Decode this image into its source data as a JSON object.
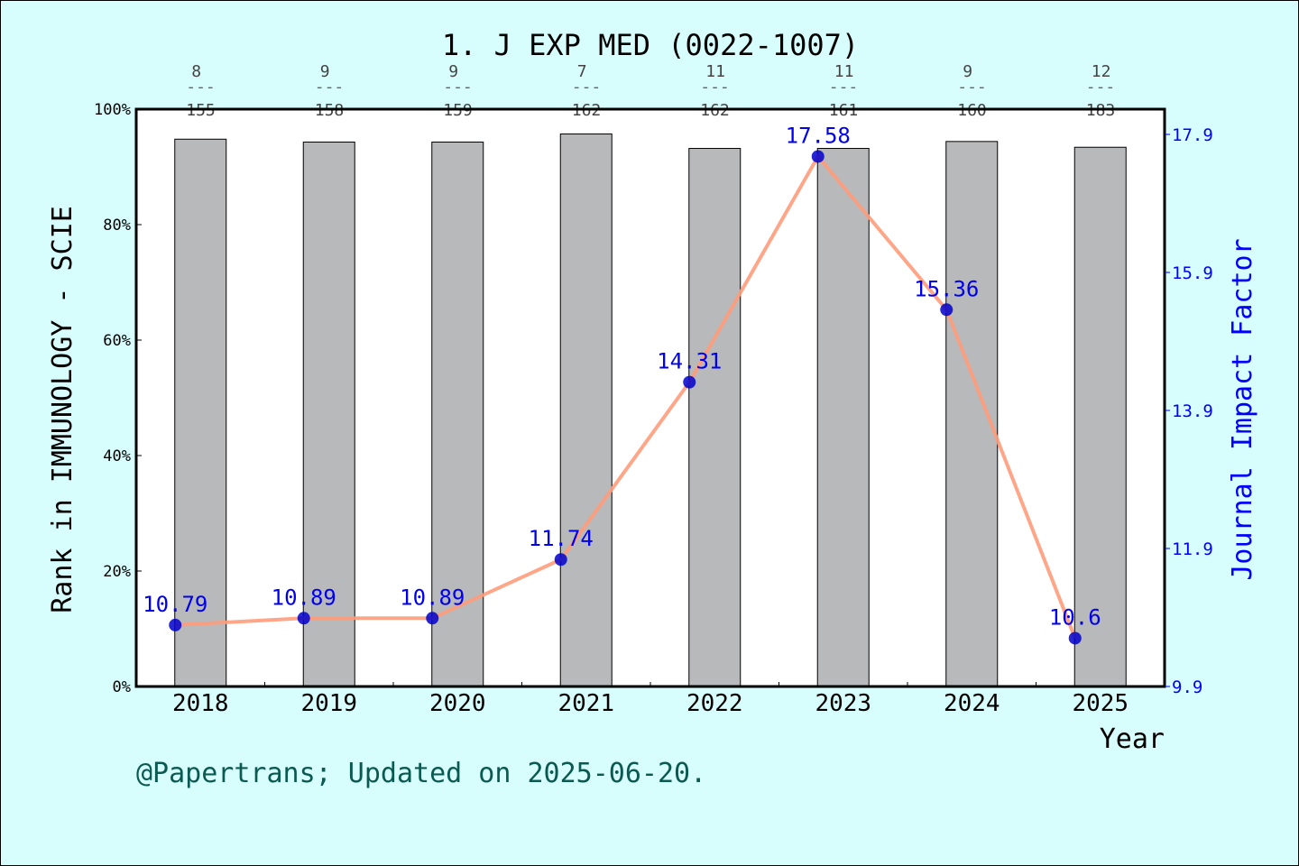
{
  "chart_data": {
    "type": "bar+line",
    "title": "1. J EXP MED (0022-1007)",
    "xlabel": "Year",
    "ylabel_left": "Rank in IMMUNOLOGY - SCIE",
    "ylabel_right": "Journal Impact Factor",
    "categories": [
      "2018",
      "2019",
      "2020",
      "2021",
      "2022",
      "2023",
      "2024",
      "2025"
    ],
    "ranks": [
      8,
      9,
      9,
      7,
      11,
      11,
      9,
      12
    ],
    "totals": [
      155,
      158,
      159,
      162,
      162,
      161,
      160,
      183
    ],
    "rank_separator": "---",
    "bar_percentile": [
      94.8,
      94.3,
      94.3,
      95.7,
      93.2,
      93.2,
      94.4,
      93.4
    ],
    "impact_factor": [
      10.79,
      10.89,
      10.89,
      11.74,
      14.31,
      17.58,
      15.36,
      10.6
    ],
    "impact_factor_labels": [
      "10.79",
      "10.89",
      "10.89",
      "11.74",
      "14.31",
      "17.58",
      "15.36",
      "10.6"
    ],
    "ylim_left": [
      0,
      100
    ],
    "yticks_left": [
      "0%",
      "20%",
      "40%",
      "60%",
      "80%",
      "100%"
    ],
    "ylim_right": [
      9.9,
      17.9
    ],
    "yticks_right": [
      "9.9",
      "11.9",
      "13.9",
      "15.9",
      "17.9"
    ],
    "grid": false,
    "colors": {
      "bar": "#b8b9bb",
      "line": "#ff9c7c",
      "marker": "#0000cc",
      "if_label": "#0000ee",
      "right_axis": "#0000ff",
      "footer": "#0b5a52",
      "background": "#d8fdfd"
    }
  },
  "footer": "@Papertrans; Updated on 2025-06-20."
}
